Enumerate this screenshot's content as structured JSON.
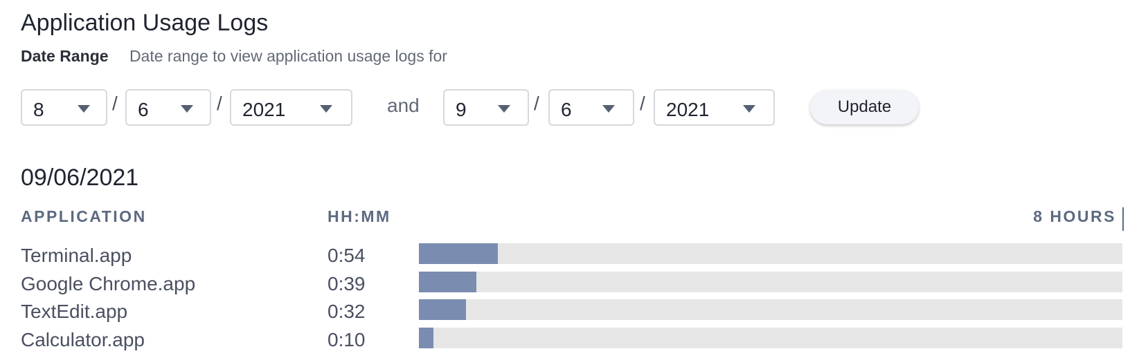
{
  "page": {
    "title": "Application Usage Logs",
    "date_range": {
      "label": "Date Range",
      "description": "Date range to view application usage logs for",
      "separator": "/",
      "joiner": "and",
      "start": {
        "month": "8",
        "day": "6",
        "year": "2021"
      },
      "end": {
        "month": "9",
        "day": "6",
        "year": "2021"
      },
      "update_label": "Update"
    }
  },
  "log": {
    "date": "09/06/2021",
    "columns": {
      "application": "APPLICATION",
      "duration": "HH:MM",
      "scale": "8 HOURS"
    },
    "scale_minutes": 480,
    "rows": [
      {
        "app": "Terminal.app",
        "time": "0:54",
        "minutes": 54
      },
      {
        "app": "Google Chrome.app",
        "time": "0:39",
        "minutes": 39
      },
      {
        "app": "TextEdit.app",
        "time": "0:32",
        "minutes": 32
      },
      {
        "app": "Calculator.app",
        "time": "0:10",
        "minutes": 10
      }
    ]
  },
  "colors": {
    "bar_fill": "#7a8db0",
    "bar_track": "#e6e6e6",
    "column_header": "#5d6a80"
  }
}
